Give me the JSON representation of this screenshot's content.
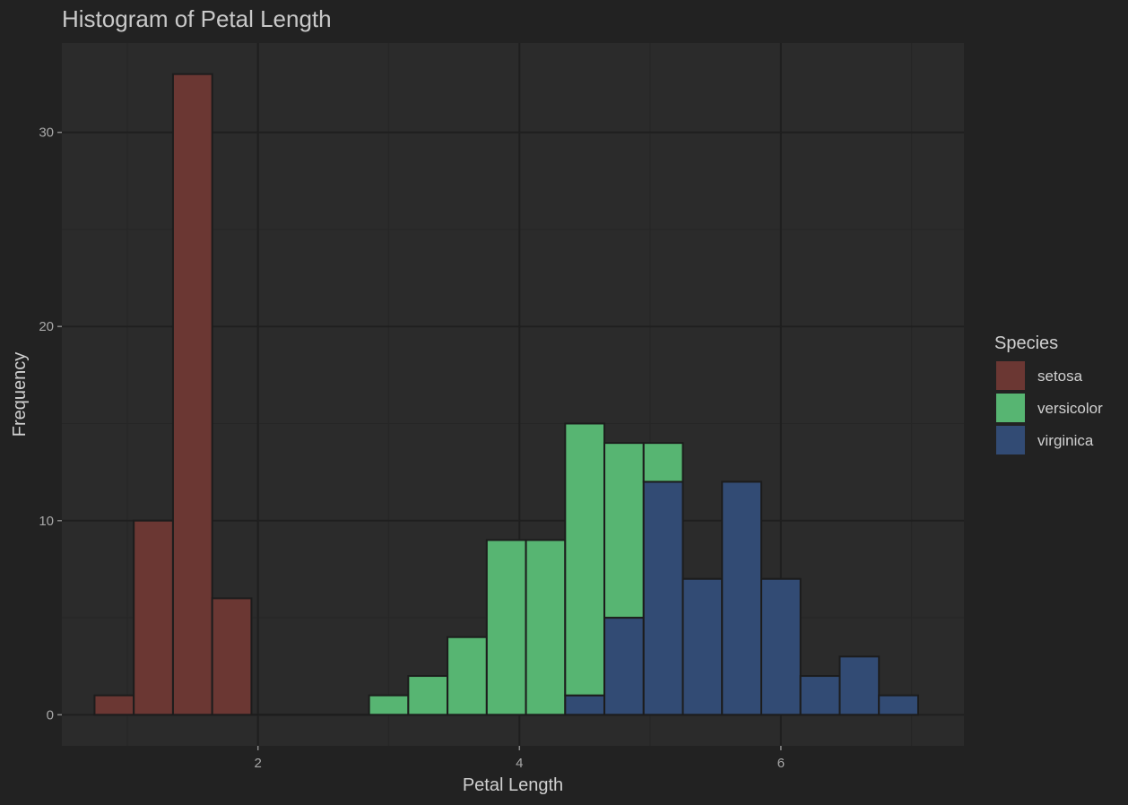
{
  "chart_data": {
    "type": "bar",
    "subtype": "stacked-histogram",
    "title": "Histogram of Petal Length",
    "xlabel": "Petal Length",
    "ylabel": "Frequency",
    "xlim": [
      0.5,
      7.4
    ],
    "ylim": [
      -1.6,
      34.6
    ],
    "xticks": [
      2,
      4,
      6
    ],
    "yticks": [
      0,
      10,
      20,
      30
    ],
    "grid": true,
    "bin_width": 0.3,
    "legend": {
      "title": "Species",
      "position": "right",
      "entries": [
        "setosa",
        "versicolor",
        "virginica"
      ]
    },
    "colors": {
      "setosa": "#6b3733",
      "versicolor": "#57b572",
      "virginica": "#324b74",
      "panel": "#2b2b2b",
      "background": "#222222",
      "grid_major": "#1f1f1f",
      "grid_minor": "#262626",
      "bar_outline": "#1c1c1c"
    },
    "bin_centers": [
      0.9,
      1.2,
      1.5,
      1.8,
      2.1,
      2.4,
      2.7,
      3.0,
      3.3,
      3.6,
      3.9,
      4.2,
      4.5,
      4.8,
      5.1,
      5.4,
      5.7,
      6.0,
      6.3,
      6.6,
      6.9
    ],
    "series": [
      {
        "name": "setosa",
        "values": [
          1,
          10,
          33,
          6,
          0,
          0,
          0,
          0,
          0,
          0,
          0,
          0,
          0,
          0,
          0,
          0,
          0,
          0,
          0,
          0,
          0
        ]
      },
      {
        "name": "versicolor",
        "values": [
          0,
          0,
          0,
          0,
          0,
          0,
          0,
          1,
          2,
          4,
          9,
          9,
          14,
          9,
          2,
          0,
          0,
          0,
          0,
          0,
          0
        ]
      },
      {
        "name": "virginica",
        "values": [
          0,
          0,
          0,
          0,
          0,
          0,
          0,
          0,
          0,
          0,
          0,
          0,
          1,
          5,
          12,
          7,
          12,
          7,
          2,
          3,
          1
        ]
      }
    ]
  }
}
